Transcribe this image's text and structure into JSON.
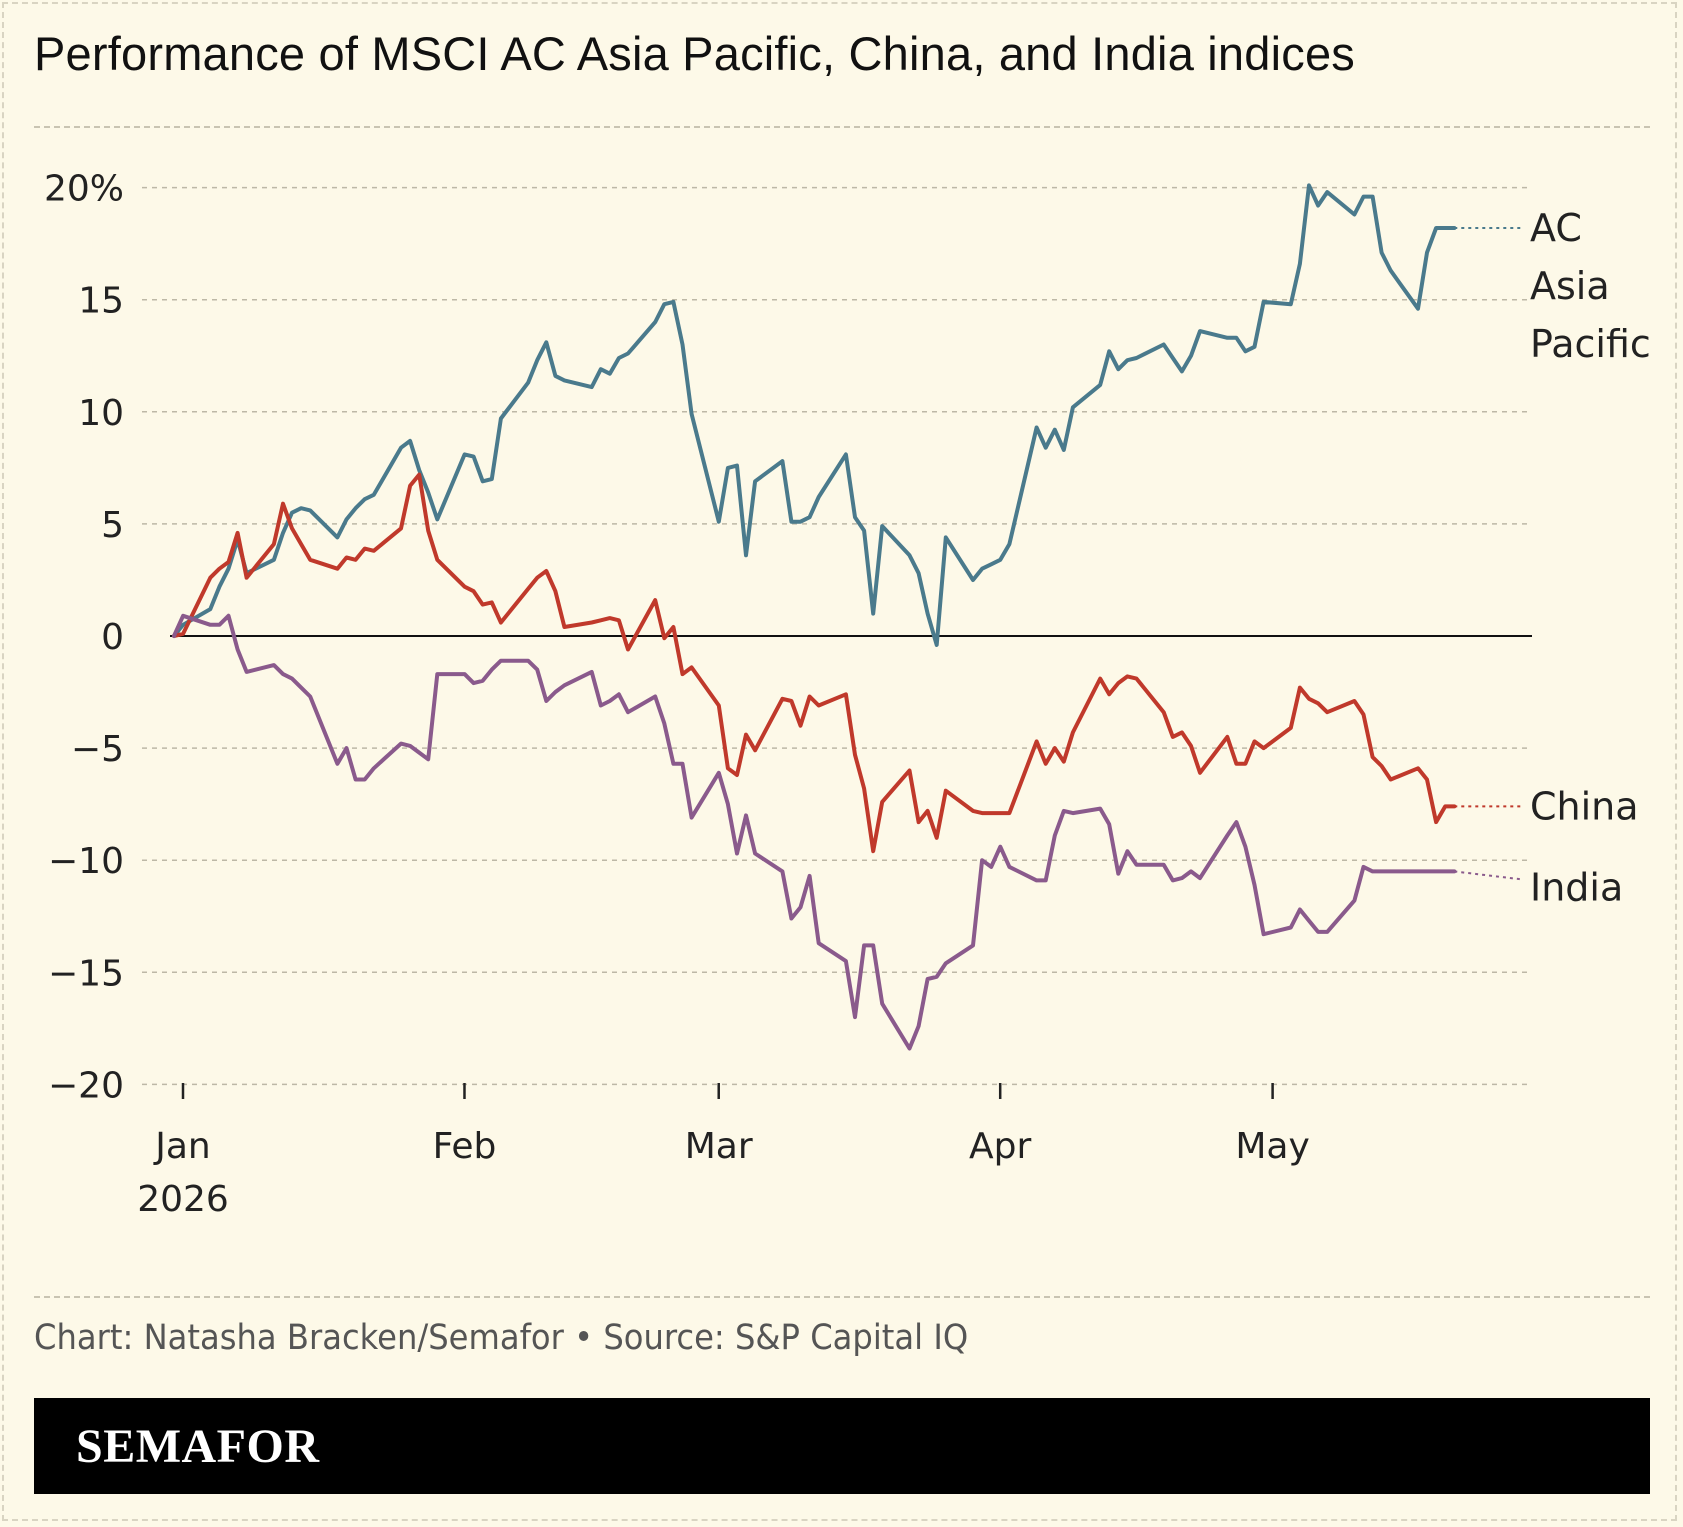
{
  "title": "Performance of MSCI AC Asia Pacific, China, and India indices",
  "footer": {
    "source": "Chart: Natasha Bracken/Semafor • Source: S&P Capital IQ",
    "brand": "SEMAFOR"
  },
  "colors": {
    "background": "#fdf9e8",
    "ac_asia_pacific": "#4a7a8c",
    "china": "#c0392b",
    "india": "#8a5a8c"
  },
  "chart_data": {
    "type": "line",
    "title": "Performance of MSCI AC Asia Pacific, China, and India indices",
    "xlabel": "",
    "ylabel": "",
    "x_ticks": [
      "Jan 2026",
      "Feb",
      "Mar",
      "Apr",
      "May"
    ],
    "y_ticks": [
      "20%",
      "15",
      "10",
      "5",
      "0",
      "−5",
      "−10",
      "−15",
      "−20"
    ],
    "ylim": [
      -20,
      20
    ],
    "x_range": [
      "2026-01-01",
      "2026-05-31"
    ],
    "grid": true,
    "legend": "direct labels at right end of lines",
    "series": [
      {
        "name": "AC Asia Pacific",
        "label_lines": [
          "AC",
          "Asia",
          "Pacific"
        ],
        "color": "#4a7a8c",
        "x": [
          "2026-01-01",
          "2026-01-02",
          "2026-01-05",
          "2026-01-06",
          "2026-01-07",
          "2026-01-08",
          "2026-01-09",
          "2026-01-12",
          "2026-01-13",
          "2026-01-14",
          "2026-01-15",
          "2026-01-16",
          "2026-01-19",
          "2026-01-20",
          "2026-01-21",
          "2026-01-22",
          "2026-01-23",
          "2026-01-26",
          "2026-01-27",
          "2026-01-28",
          "2026-01-29",
          "2026-01-30",
          "2026-02-02",
          "2026-02-03",
          "2026-02-04",
          "2026-02-05",
          "2026-02-06",
          "2026-02-09",
          "2026-02-10",
          "2026-02-11",
          "2026-02-12",
          "2026-02-13",
          "2026-02-16",
          "2026-02-17",
          "2026-02-18",
          "2026-02-19",
          "2026-02-20",
          "2026-02-23",
          "2026-02-24",
          "2026-02-25",
          "2026-02-26",
          "2026-02-27",
          "2026-03-02",
          "2026-03-03",
          "2026-03-04",
          "2026-03-05",
          "2026-03-06",
          "2026-03-09",
          "2026-03-10",
          "2026-03-11",
          "2026-03-12",
          "2026-03-13",
          "2026-03-16",
          "2026-03-17",
          "2026-03-18",
          "2026-03-19",
          "2026-03-20",
          "2026-03-23",
          "2026-03-24",
          "2026-03-25",
          "2026-03-26",
          "2026-03-27",
          "2026-03-30",
          "2026-03-31",
          "2026-04-01",
          "2026-04-02",
          "2026-04-03",
          "2026-04-06",
          "2026-04-07",
          "2026-04-08",
          "2026-04-09",
          "2026-04-10",
          "2026-04-13",
          "2026-04-14",
          "2026-04-15",
          "2026-04-16",
          "2026-04-17",
          "2026-04-20",
          "2026-04-21",
          "2026-04-22",
          "2026-04-23",
          "2026-04-24",
          "2026-04-27",
          "2026-04-28",
          "2026-04-29",
          "2026-04-30",
          "2026-05-01",
          "2026-05-04",
          "2026-05-05",
          "2026-05-06",
          "2026-05-07",
          "2026-05-08",
          "2026-05-11",
          "2026-05-12",
          "2026-05-13",
          "2026-05-14",
          "2026-05-15",
          "2026-05-18",
          "2026-05-19",
          "2026-05-20",
          "2026-05-21",
          "2026-05-22"
        ],
        "values": [
          0,
          0.5,
          1.2,
          2.2,
          3.0,
          4.3,
          2.8,
          3.4,
          4.6,
          5.5,
          5.7,
          5.6,
          4.4,
          5.2,
          5.7,
          6.1,
          6.3,
          8.4,
          8.7,
          7.4,
          6.4,
          5.2,
          8.1,
          8.0,
          6.9,
          7.0,
          9.7,
          11.3,
          12.3,
          13.1,
          11.6,
          11.4,
          11.1,
          11.9,
          11.7,
          12.4,
          12.6,
          14.0,
          14.8,
          14.9,
          13.0,
          9.9,
          5.1,
          7.5,
          7.6,
          3.6,
          6.9,
          7.8,
          5.1,
          5.1,
          5.3,
          6.2,
          8.1,
          5.3,
          4.7,
          1.0,
          4.9,
          3.6,
          2.8,
          1.0,
          -0.4,
          4.4,
          2.5,
          3.0,
          3.2,
          3.4,
          4.1,
          9.3,
          8.4,
          9.2,
          8.3,
          10.2,
          11.2,
          12.7,
          11.9,
          12.3,
          12.4,
          13.0,
          12.4,
          11.8,
          12.5,
          13.6,
          13.3,
          13.3,
          12.7,
          12.9,
          14.9,
          14.8,
          16.6,
          20.1,
          19.2,
          19.8,
          18.8,
          19.6,
          19.6,
          17.1,
          16.3,
          14.6,
          17.1,
          18.2,
          18.2,
          18.2
        ],
        "end_label_value": 18.2
      },
      {
        "name": "China",
        "color": "#c0392b",
        "x": [
          "2026-01-01",
          "2026-01-02",
          "2026-01-05",
          "2026-01-06",
          "2026-01-07",
          "2026-01-08",
          "2026-01-09",
          "2026-01-12",
          "2026-01-13",
          "2026-01-14",
          "2026-01-15",
          "2026-01-16",
          "2026-01-19",
          "2026-01-20",
          "2026-01-21",
          "2026-01-22",
          "2026-01-23",
          "2026-01-26",
          "2026-01-27",
          "2026-01-28",
          "2026-01-29",
          "2026-01-30",
          "2026-02-02",
          "2026-02-03",
          "2026-02-04",
          "2026-02-05",
          "2026-02-06",
          "2026-02-09",
          "2026-02-10",
          "2026-02-11",
          "2026-02-12",
          "2026-02-13",
          "2026-02-16",
          "2026-02-17",
          "2026-02-18",
          "2026-02-19",
          "2026-02-20",
          "2026-02-23",
          "2026-02-24",
          "2026-02-25",
          "2026-02-26",
          "2026-02-27",
          "2026-03-02",
          "2026-03-03",
          "2026-03-04",
          "2026-03-05",
          "2026-03-06",
          "2026-03-09",
          "2026-03-10",
          "2026-03-11",
          "2026-03-12",
          "2026-03-13",
          "2026-03-16",
          "2026-03-17",
          "2026-03-18",
          "2026-03-19",
          "2026-03-20",
          "2026-03-23",
          "2026-03-24",
          "2026-03-25",
          "2026-03-26",
          "2026-03-27",
          "2026-03-30",
          "2026-03-31",
          "2026-04-01",
          "2026-04-02",
          "2026-04-03",
          "2026-04-06",
          "2026-04-07",
          "2026-04-08",
          "2026-04-09",
          "2026-04-10",
          "2026-04-13",
          "2026-04-14",
          "2026-04-15",
          "2026-04-16",
          "2026-04-17",
          "2026-04-20",
          "2026-04-21",
          "2026-04-22",
          "2026-04-23",
          "2026-04-24",
          "2026-04-27",
          "2026-04-28",
          "2026-04-29",
          "2026-04-30",
          "2026-05-01",
          "2026-05-04",
          "2026-05-05",
          "2026-05-06",
          "2026-05-07",
          "2026-05-08",
          "2026-05-11",
          "2026-05-12",
          "2026-05-13",
          "2026-05-14",
          "2026-05-15",
          "2026-05-18",
          "2026-05-19",
          "2026-05-20",
          "2026-05-21",
          "2026-05-22"
        ],
        "values": [
          0,
          0.1,
          2.6,
          3.0,
          3.3,
          4.6,
          2.6,
          4.1,
          5.9,
          4.8,
          4.1,
          3.4,
          3.0,
          3.5,
          3.4,
          3.9,
          3.8,
          4.8,
          6.7,
          7.2,
          4.7,
          3.4,
          2.2,
          2.0,
          1.4,
          1.5,
          0.6,
          2.1,
          2.6,
          2.9,
          2.0,
          0.4,
          0.6,
          0.7,
          0.8,
          0.7,
          -0.6,
          1.6,
          -0.1,
          0.4,
          -1.7,
          -1.4,
          -3.1,
          -5.9,
          -6.2,
          -4.4,
          -5.1,
          -2.8,
          -2.9,
          -4.0,
          -2.7,
          -3.1,
          -2.6,
          -5.3,
          -6.8,
          -9.6,
          -7.4,
          -6.0,
          -8.3,
          -7.8,
          -9.0,
          -6.9,
          -7.8,
          -7.9,
          -7.9,
          -7.9,
          -7.9,
          -4.7,
          -5.7,
          -5.0,
          -5.6,
          -4.3,
          -1.9,
          -2.6,
          -2.1,
          -1.8,
          -1.9,
          -3.4,
          -4.5,
          -4.3,
          -4.9,
          -6.1,
          -4.5,
          -5.7,
          -5.7,
          -4.7,
          -5.0,
          -4.1,
          -2.3,
          -2.8,
          -3.0,
          -3.4,
          -2.9,
          -3.5,
          -5.4,
          -5.8,
          -6.4,
          -5.9,
          -6.4,
          -8.3,
          -7.6,
          -7.6
        ],
        "end_label_value": -7.6
      },
      {
        "name": "India",
        "color": "#8a5a8c",
        "x": [
          "2026-01-01",
          "2026-01-02",
          "2026-01-05",
          "2026-01-06",
          "2026-01-07",
          "2026-01-08",
          "2026-01-09",
          "2026-01-12",
          "2026-01-13",
          "2026-01-14",
          "2026-01-15",
          "2026-01-16",
          "2026-01-19",
          "2026-01-20",
          "2026-01-21",
          "2026-01-22",
          "2026-01-23",
          "2026-01-26",
          "2026-01-27",
          "2026-01-28",
          "2026-01-29",
          "2026-01-30",
          "2026-02-02",
          "2026-02-03",
          "2026-02-04",
          "2026-02-05",
          "2026-02-06",
          "2026-02-09",
          "2026-02-10",
          "2026-02-11",
          "2026-02-12",
          "2026-02-13",
          "2026-02-16",
          "2026-02-17",
          "2026-02-18",
          "2026-02-19",
          "2026-02-20",
          "2026-02-23",
          "2026-02-24",
          "2026-02-25",
          "2026-02-26",
          "2026-02-27",
          "2026-03-02",
          "2026-03-03",
          "2026-03-04",
          "2026-03-05",
          "2026-03-06",
          "2026-03-09",
          "2026-03-10",
          "2026-03-11",
          "2026-03-12",
          "2026-03-13",
          "2026-03-16",
          "2026-03-17",
          "2026-03-18",
          "2026-03-19",
          "2026-03-20",
          "2026-03-23",
          "2026-03-24",
          "2026-03-25",
          "2026-03-26",
          "2026-03-27",
          "2026-03-30",
          "2026-03-31",
          "2026-04-01",
          "2026-04-02",
          "2026-04-03",
          "2026-04-06",
          "2026-04-07",
          "2026-04-08",
          "2026-04-09",
          "2026-04-10",
          "2026-04-13",
          "2026-04-14",
          "2026-04-15",
          "2026-04-16",
          "2026-04-17",
          "2026-04-20",
          "2026-04-21",
          "2026-04-22",
          "2026-04-23",
          "2026-04-24",
          "2026-04-27",
          "2026-04-28",
          "2026-04-29",
          "2026-04-30",
          "2026-05-01",
          "2026-05-04",
          "2026-05-05",
          "2026-05-06",
          "2026-05-07",
          "2026-05-08",
          "2026-05-11",
          "2026-05-12",
          "2026-05-13",
          "2026-05-14",
          "2026-05-15",
          "2026-05-18",
          "2026-05-19",
          "2026-05-20",
          "2026-05-21",
          "2026-05-22"
        ],
        "values": [
          0,
          0.9,
          0.5,
          0.5,
          0.9,
          -0.6,
          -1.6,
          -1.3,
          -1.7,
          -1.9,
          -2.3,
          -2.7,
          -5.7,
          -5.0,
          -6.4,
          -6.4,
          -5.9,
          -4.8,
          -4.9,
          -5.2,
          -5.5,
          -1.7,
          -1.7,
          -2.1,
          -2.0,
          -1.5,
          -1.1,
          -1.1,
          -1.5,
          -2.9,
          -2.5,
          -2.2,
          -1.6,
          -3.1,
          -2.9,
          -2.6,
          -3.4,
          -2.7,
          -3.9,
          -5.7,
          -5.7,
          -8.1,
          -6.1,
          -7.5,
          -9.7,
          -8.0,
          -9.7,
          -10.5,
          -12.6,
          -12.1,
          -10.7,
          -13.7,
          -14.5,
          -17.0,
          -13.8,
          -13.8,
          -16.4,
          -18.4,
          -17.4,
          -15.3,
          -15.2,
          -14.6,
          -13.8,
          -10.0,
          -10.3,
          -9.4,
          -10.3,
          -10.9,
          -10.9,
          -8.9,
          -7.8,
          -7.9,
          -7.7,
          -8.4,
          -10.6,
          -9.6,
          -10.2,
          -10.2,
          -10.9,
          -10.8,
          -10.5,
          -10.8,
          -8.9,
          -8.3,
          -9.4,
          -11.1,
          -13.3,
          -13.0,
          -12.2,
          -12.7,
          -13.2,
          -13.2,
          -11.8,
          -10.3,
          -10.5,
          -10.5,
          -10.5,
          -10.5,
          -10.5,
          -10.5,
          -10.5,
          -10.5
        ],
        "end_label_value": -10.5
      }
    ]
  }
}
